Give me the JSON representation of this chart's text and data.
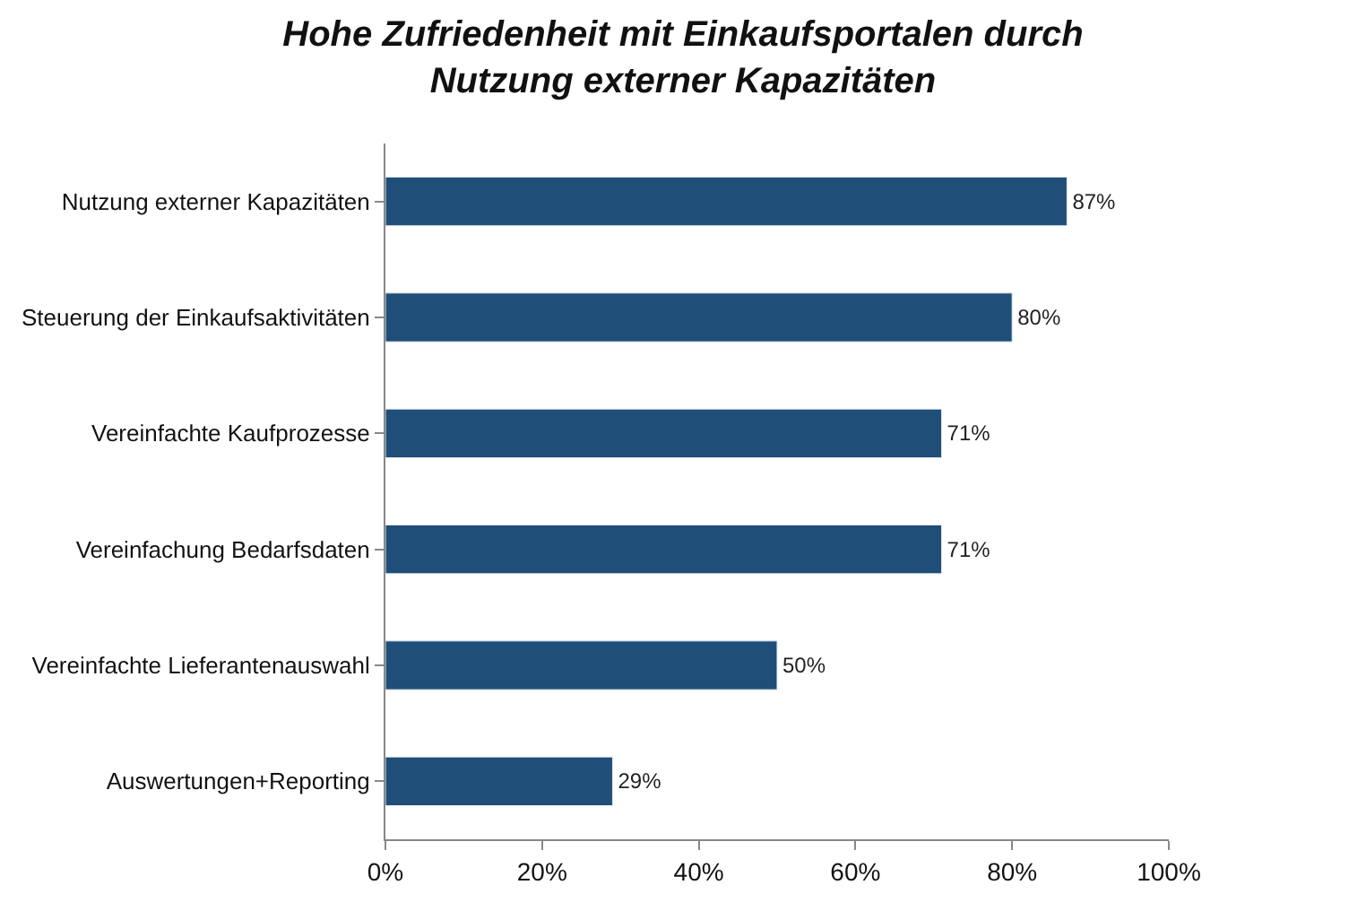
{
  "chart_data": {
    "type": "bar",
    "orientation": "horizontal",
    "title": "Hohe Zufriedenheit mit Einkaufsportalen durch\nNutzung externer Kapazitäten",
    "categories": [
      "Nutzung externer Kapazitäten",
      "Steuerung der Einkaufsaktivitäten",
      "Vereinfachte Kaufprozesse",
      "Vereinfachung Bedarfsdaten",
      "Vereinfachte Lieferantenauswahl",
      "Auswertungen+Reporting"
    ],
    "values": [
      87,
      80,
      71,
      71,
      50,
      29
    ],
    "value_labels": [
      "87%",
      "80%",
      "71%",
      "71%",
      "50%",
      "29%"
    ],
    "color": "#1f4e79",
    "xlim": [
      0,
      100
    ],
    "xticks": [
      {
        "value": 0,
        "label": "0%"
      },
      {
        "value": 20,
        "label": "20%"
      },
      {
        "value": 40,
        "label": "40%"
      },
      {
        "value": 60,
        "label": "60%"
      },
      {
        "value": 80,
        "label": "80%"
      },
      {
        "value": 100,
        "label": "100%"
      }
    ],
    "legend": false
  }
}
